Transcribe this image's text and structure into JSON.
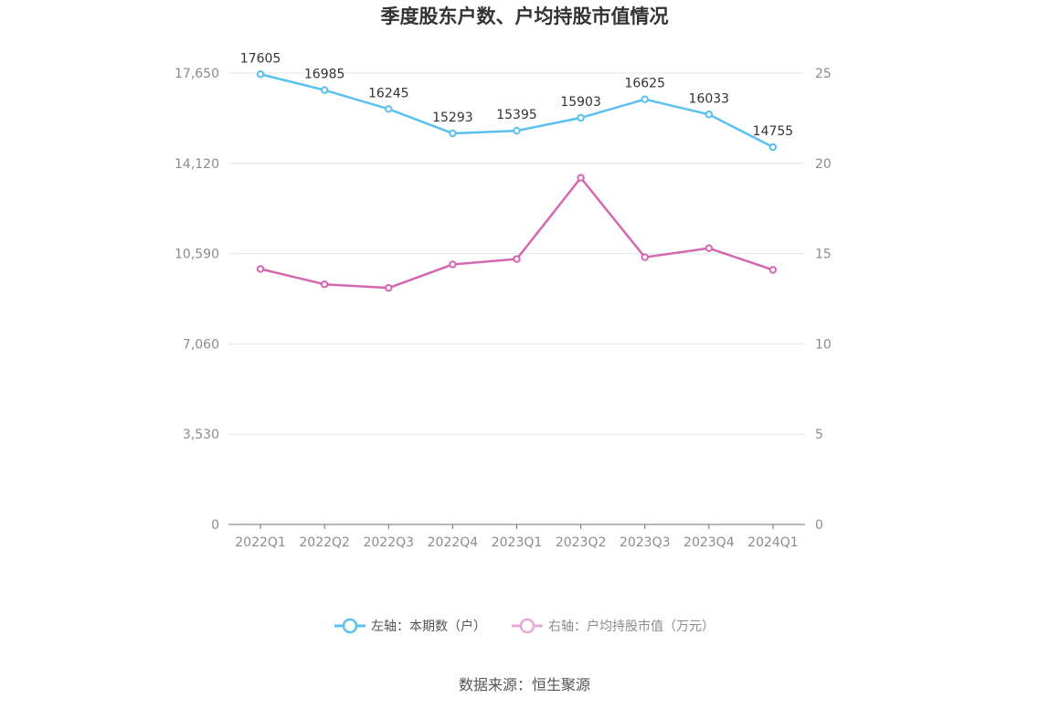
{
  "chart_data": {
    "type": "line",
    "title": "季度股东户数、户均持股市值情况",
    "categories": [
      "2022Q1",
      "2022Q2",
      "2022Q3",
      "2022Q4",
      "2023Q1",
      "2023Q2",
      "2023Q3",
      "2023Q4",
      "2024Q1"
    ],
    "series": [
      {
        "name": "左轴：本期数（户）",
        "axis": "left",
        "color": "#5bc0f0",
        "values": [
          17605,
          16985,
          16245,
          15293,
          15395,
          15903,
          16625,
          16033,
          14755
        ],
        "show_labels": true
      },
      {
        "name": "右轴：户均持股市值（万元）",
        "axis": "right",
        "color": "#d467b0",
        "legend_color": "#e8a8d4",
        "values": [
          14.15,
          13.3,
          13.1,
          14.4,
          14.7,
          19.2,
          14.8,
          15.3,
          14.1
        ],
        "show_labels": false
      }
    ],
    "left_axis": {
      "ylim": [
        0,
        17650
      ],
      "ticks": [
        0,
        3530,
        7060,
        10590,
        14120,
        17650
      ],
      "tick_labels": [
        "0",
        "3,530",
        "7,060",
        "10,590",
        "14,120",
        "17,650"
      ]
    },
    "right_axis": {
      "ylim": [
        0,
        25
      ],
      "ticks": [
        0,
        5,
        10,
        15,
        20,
        25
      ],
      "tick_labels": [
        "0",
        "5",
        "10",
        "15",
        "20",
        "25"
      ]
    },
    "grid": true,
    "legend": "bottom",
    "source": "数据来源：恒生聚源"
  }
}
